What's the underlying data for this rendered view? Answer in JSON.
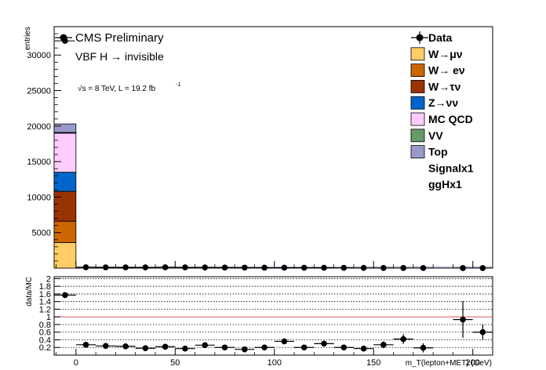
{
  "chart_data": [
    {
      "type": "bar",
      "stacked": true,
      "ylabel": "entries",
      "xlabel": "m_T(lepton+MET) (GeV)",
      "xlim": [
        -11,
        210
      ],
      "ylim": [
        0,
        34000
      ],
      "y_ticks": [
        {
          "v": 5000,
          "label": "5000"
        },
        {
          "v": 10000,
          "label": "10000"
        },
        {
          "v": 15000,
          "label": "15000"
        },
        {
          "v": 20000,
          "label": "20000"
        },
        {
          "v": 25000,
          "label": "25000"
        },
        {
          "v": 30000,
          "label": "30000"
        }
      ],
      "x_ticks": [
        {
          "v": 0,
          "label": "0"
        },
        {
          "v": 50,
          "label": "50"
        },
        {
          "v": 100,
          "label": "100"
        },
        {
          "v": 150,
          "label": "150"
        },
        {
          "v": 200,
          "label": "200"
        }
      ],
      "annotations": {
        "experiment": "CMS Preliminary",
        "process": "VBF H → invisible",
        "energy": "√s = 8 TeV, L = 19.2 fb",
        "energy_sup": "-1"
      },
      "legend_position": "top-right",
      "legend": [
        {
          "label": "Data",
          "type": "data"
        },
        {
          "label": "W→μν",
          "type": "fill",
          "color": "#ffcc66"
        },
        {
          "label": "W→ eν",
          "type": "fill",
          "color": "#cc6600"
        },
        {
          "label": "W→τν",
          "type": "fill",
          "color": "#993300"
        },
        {
          "label": "Z→νν",
          "type": "fill",
          "color": "#0066cc"
        },
        {
          "label": "MC QCD",
          "type": "fill",
          "color": "#ffccff"
        },
        {
          "label": "VV",
          "type": "fill",
          "color": "#669966"
        },
        {
          "label": "Top",
          "type": "fill",
          "color": "#9999cc"
        },
        {
          "label": "Signalx1",
          "type": "none"
        },
        {
          "label": "ggHx1",
          "type": "none"
        }
      ],
      "stack_first_bin": {
        "x_range": [
          -11,
          0
        ],
        "components": [
          {
            "name": "W→μν",
            "value": 3600
          },
          {
            "name": "W→ eν",
            "value": 3000
          },
          {
            "name": "W→τν",
            "value": 4200
          },
          {
            "name": "Z→νν",
            "value": 2700
          },
          {
            "name": "MC QCD",
            "value": 5500
          },
          {
            "name": "VV",
            "value": 100
          },
          {
            "name": "Top",
            "value": 1200
          }
        ]
      },
      "mc_total_other_bins": 150,
      "data_points": [
        {
          "x": -5.5,
          "y": 32000
        },
        {
          "x": 5,
          "y": 120
        },
        {
          "x": 15,
          "y": 110
        },
        {
          "x": 25,
          "y": 110
        },
        {
          "x": 35,
          "y": 100
        },
        {
          "x": 45,
          "y": 120
        },
        {
          "x": 55,
          "y": 100
        },
        {
          "x": 65,
          "y": 90
        },
        {
          "x": 75,
          "y": 80
        },
        {
          "x": 85,
          "y": 70
        },
        {
          "x": 95,
          "y": 60
        },
        {
          "x": 105,
          "y": 60
        },
        {
          "x": 115,
          "y": 50
        },
        {
          "x": 125,
          "y": 50
        },
        {
          "x": 135,
          "y": 40
        },
        {
          "x": 145,
          "y": 30
        },
        {
          "x": 155,
          "y": 25
        },
        {
          "x": 165,
          "y": 20
        },
        {
          "x": 175,
          "y": 15
        },
        {
          "x": 195,
          "y": 10
        },
        {
          "x": 205,
          "y": 8
        }
      ]
    },
    {
      "type": "scatter",
      "ylabel": "data/MC",
      "xlim": [
        -11,
        210
      ],
      "ylim": [
        0,
        2.05
      ],
      "reference_line": 1,
      "y_ticks": [
        {
          "v": 0.2,
          "label": "0.2"
        },
        {
          "v": 0.4,
          "label": "0.4"
        },
        {
          "v": 0.6,
          "label": "0.6"
        },
        {
          "v": 0.8,
          "label": "0.8"
        },
        {
          "v": 1.0,
          "label": "1"
        },
        {
          "v": 1.2,
          "label": "1.2"
        },
        {
          "v": 1.4,
          "label": "1.4"
        },
        {
          "v": 1.6,
          "label": "1.6"
        },
        {
          "v": 1.8,
          "label": "1.8"
        },
        {
          "v": 2.0,
          "label": "2"
        }
      ],
      "points": [
        {
          "x": -5.5,
          "y": 1.57,
          "err": 0.02,
          "xerr": 5.5
        },
        {
          "x": 5,
          "y": 0.27,
          "err": 0.03,
          "xerr": 5
        },
        {
          "x": 15,
          "y": 0.24,
          "err": 0.03,
          "xerr": 5
        },
        {
          "x": 25,
          "y": 0.23,
          "err": 0.03,
          "xerr": 5
        },
        {
          "x": 35,
          "y": 0.18,
          "err": 0.03,
          "xerr": 5
        },
        {
          "x": 45,
          "y": 0.22,
          "err": 0.04,
          "xerr": 5
        },
        {
          "x": 55,
          "y": 0.17,
          "err": 0.04,
          "xerr": 5
        },
        {
          "x": 65,
          "y": 0.26,
          "err": 0.04,
          "xerr": 5
        },
        {
          "x": 75,
          "y": 0.2,
          "err": 0.04,
          "xerr": 5
        },
        {
          "x": 85,
          "y": 0.15,
          "err": 0.04,
          "xerr": 5
        },
        {
          "x": 95,
          "y": 0.2,
          "err": 0.05,
          "xerr": 5
        },
        {
          "x": 105,
          "y": 0.36,
          "err": 0.06,
          "xerr": 5
        },
        {
          "x": 115,
          "y": 0.2,
          "err": 0.05,
          "xerr": 5
        },
        {
          "x": 125,
          "y": 0.3,
          "err": 0.07,
          "xerr": 5
        },
        {
          "x": 135,
          "y": 0.2,
          "err": 0.06,
          "xerr": 5
        },
        {
          "x": 145,
          "y": 0.17,
          "err": 0.06,
          "xerr": 5
        },
        {
          "x": 155,
          "y": 0.27,
          "err": 0.09,
          "xerr": 5
        },
        {
          "x": 165,
          "y": 0.42,
          "err": 0.13,
          "xerr": 5
        },
        {
          "x": 175,
          "y": 0.19,
          "err": 0.12,
          "xerr": 5
        },
        {
          "x": 195,
          "y": 0.93,
          "err": 0.48,
          "xerr": 5
        },
        {
          "x": 205,
          "y": 0.6,
          "err": 0.2,
          "xerr": 5
        }
      ]
    }
  ]
}
